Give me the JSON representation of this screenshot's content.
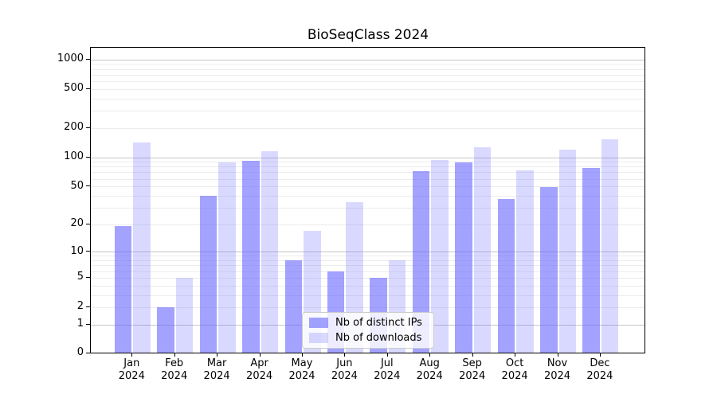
{
  "title": "BioSeqClass 2024",
  "chart_data": {
    "type": "bar",
    "title": "BioSeqClass 2024",
    "categories": [
      "Jan 2024",
      "Feb 2024",
      "Mar 2024",
      "Apr 2024",
      "May 2024",
      "Jun 2024",
      "Jul 2024",
      "Aug 2024",
      "Sep 2024",
      "Oct 2024",
      "Nov 2024",
      "Dec 2024"
    ],
    "series": [
      {
        "name": "Nb of distinct IPs",
        "color": "rgba(102,102,255,0.60)",
        "values": [
          19,
          2,
          40,
          92,
          8,
          6,
          5,
          72,
          89,
          37,
          49,
          77
        ]
      },
      {
        "name": "Nb of downloads",
        "color": "rgba(102,102,255,0.25)",
        "values": [
          142,
          5,
          89,
          115,
          17,
          34,
          8,
          93,
          127,
          74,
          121,
          154
        ]
      }
    ],
    "y_ticks": [
      0,
      1,
      2,
      5,
      10,
      20,
      50,
      100,
      200,
      500,
      1000
    ],
    "y_scale": "log1p",
    "ylim": [
      0,
      1300
    ],
    "grid": true,
    "grid_major_at": [
      1,
      10,
      100,
      1000
    ],
    "legend_position": "lower center",
    "base_color": "#6666ff",
    "major_grid_color": "#c6c6c6",
    "minor_grid_color": "#ececec"
  }
}
